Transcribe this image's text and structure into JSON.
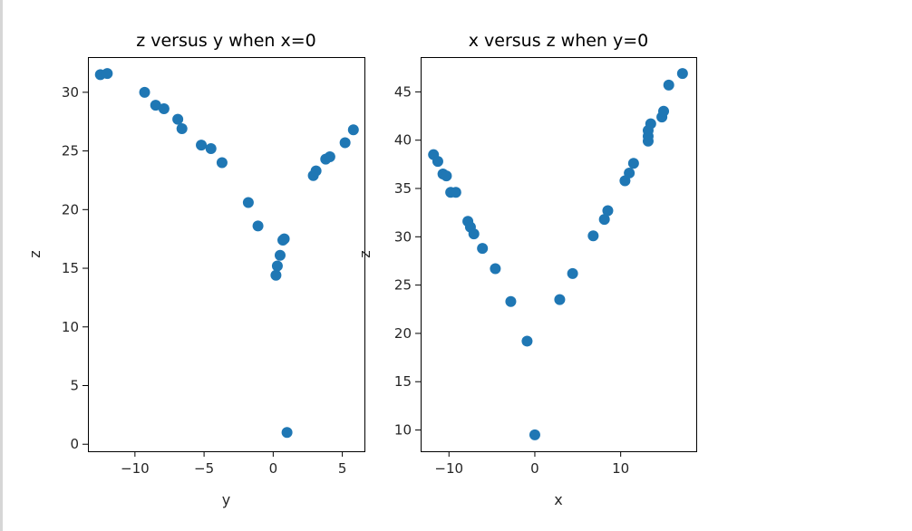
{
  "colors": {
    "marker": "#1f77b4",
    "spine": "#000000",
    "text": "#262626"
  },
  "chart_data": [
    {
      "type": "scatter",
      "title": "z versus y when x=0",
      "xlabel": "y",
      "ylabel": "z",
      "xlim": [
        -13.4,
        6.6
      ],
      "ylim": [
        -0.6,
        33.0
      ],
      "xticks": [
        -10,
        -5,
        0,
        5
      ],
      "xtick_labels": [
        "−10",
        "−5",
        "0",
        "5"
      ],
      "yticks": [
        0,
        5,
        10,
        15,
        20,
        25,
        30
      ],
      "ytick_labels": [
        "0",
        "5",
        "10",
        "15",
        "20",
        "25",
        "30"
      ],
      "grid": false,
      "legend": "none",
      "points": [
        [
          -12.5,
          31.5
        ],
        [
          -12.0,
          31.6
        ],
        [
          -9.3,
          30.0
        ],
        [
          -8.5,
          28.9
        ],
        [
          -7.9,
          28.6
        ],
        [
          -6.9,
          27.7
        ],
        [
          -6.6,
          26.9
        ],
        [
          -5.2,
          25.5
        ],
        [
          -4.5,
          25.2
        ],
        [
          -3.7,
          24.0
        ],
        [
          -1.8,
          20.6
        ],
        [
          -1.1,
          18.6
        ],
        [
          0.2,
          14.4
        ],
        [
          0.3,
          15.2
        ],
        [
          0.5,
          16.1
        ],
        [
          0.7,
          17.4
        ],
        [
          0.8,
          17.5
        ],
        [
          1.0,
          1.0
        ],
        [
          2.9,
          22.9
        ],
        [
          3.1,
          23.3
        ],
        [
          3.8,
          24.3
        ],
        [
          4.1,
          24.5
        ],
        [
          5.2,
          25.7
        ],
        [
          5.8,
          26.8
        ]
      ]
    },
    {
      "type": "scatter",
      "title": "x versus z when y=0",
      "xlabel": "x",
      "ylabel": "z",
      "xlim": [
        -13.3,
        18.8
      ],
      "ylim": [
        7.8,
        48.6
      ],
      "xticks": [
        -10,
        0,
        10
      ],
      "xtick_labels": [
        "−10",
        "0",
        "10"
      ],
      "yticks": [
        10,
        15,
        20,
        25,
        30,
        35,
        40,
        45
      ],
      "ytick_labels": [
        "10",
        "15",
        "20",
        "25",
        "30",
        "35",
        "40",
        "45"
      ],
      "grid": false,
      "legend": "none",
      "points": [
        [
          -11.8,
          38.5
        ],
        [
          -11.3,
          37.8
        ],
        [
          -10.7,
          36.5
        ],
        [
          -10.3,
          36.3
        ],
        [
          -9.8,
          34.6
        ],
        [
          -9.2,
          34.6
        ],
        [
          -7.8,
          31.6
        ],
        [
          -7.5,
          31.0
        ],
        [
          -7.1,
          30.3
        ],
        [
          -6.1,
          28.8
        ],
        [
          -4.6,
          26.7
        ],
        [
          -2.8,
          23.3
        ],
        [
          -0.9,
          19.2
        ],
        [
          0.0,
          9.5
        ],
        [
          2.9,
          23.5
        ],
        [
          4.4,
          26.2
        ],
        [
          6.8,
          30.1
        ],
        [
          8.1,
          31.8
        ],
        [
          8.5,
          32.7
        ],
        [
          10.5,
          35.8
        ],
        [
          11.0,
          36.6
        ],
        [
          11.5,
          37.6
        ],
        [
          13.2,
          39.9
        ],
        [
          13.2,
          40.4
        ],
        [
          13.2,
          41.0
        ],
        [
          13.5,
          41.7
        ],
        [
          14.8,
          42.4
        ],
        [
          15.0,
          43.0
        ],
        [
          15.6,
          45.7
        ],
        [
          17.2,
          46.9
        ]
      ]
    }
  ]
}
